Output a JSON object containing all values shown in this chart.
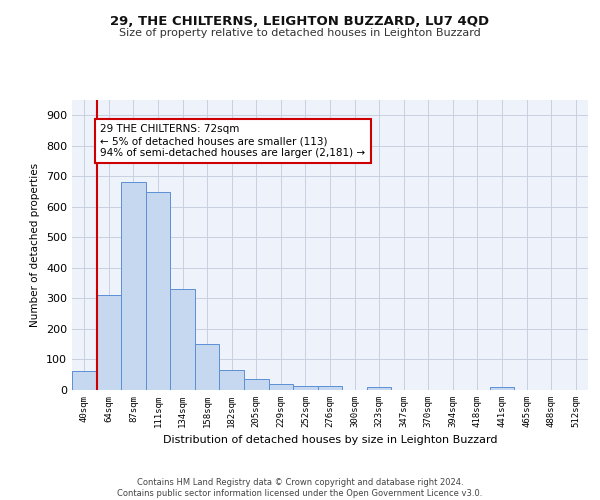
{
  "title1": "29, THE CHILTERNS, LEIGHTON BUZZARD, LU7 4QD",
  "title2": "Size of property relative to detached houses in Leighton Buzzard",
  "xlabel": "Distribution of detached houses by size in Leighton Buzzard",
  "ylabel": "Number of detached properties",
  "categories": [
    "40sqm",
    "64sqm",
    "87sqm",
    "111sqm",
    "134sqm",
    "158sqm",
    "182sqm",
    "205sqm",
    "229sqm",
    "252sqm",
    "276sqm",
    "300sqm",
    "323sqm",
    "347sqm",
    "370sqm",
    "394sqm",
    "418sqm",
    "441sqm",
    "465sqm",
    "488sqm",
    "512sqm"
  ],
  "values": [
    62,
    310,
    680,
    650,
    330,
    150,
    65,
    35,
    20,
    12,
    12,
    0,
    10,
    0,
    0,
    0,
    0,
    10,
    0,
    0,
    0
  ],
  "bar_color": "#c5d8f0",
  "bar_edge_color": "#5b8fd4",
  "vline_color": "#cc0000",
  "vline_xindex": 1,
  "annotation_text": "29 THE CHILTERNS: 72sqm\n← 5% of detached houses are smaller (113)\n94% of semi-detached houses are larger (2,181) →",
  "annotation_box_color": "#ffffff",
  "annotation_box_edge": "#cc0000",
  "ylim": [
    0,
    950
  ],
  "yticks": [
    0,
    100,
    200,
    300,
    400,
    500,
    600,
    700,
    800,
    900
  ],
  "footer": "Contains HM Land Registry data © Crown copyright and database right 2024.\nContains public sector information licensed under the Open Government Licence v3.0.",
  "bg_color": "#eef2fb",
  "grid_color": "#c8cfe0"
}
